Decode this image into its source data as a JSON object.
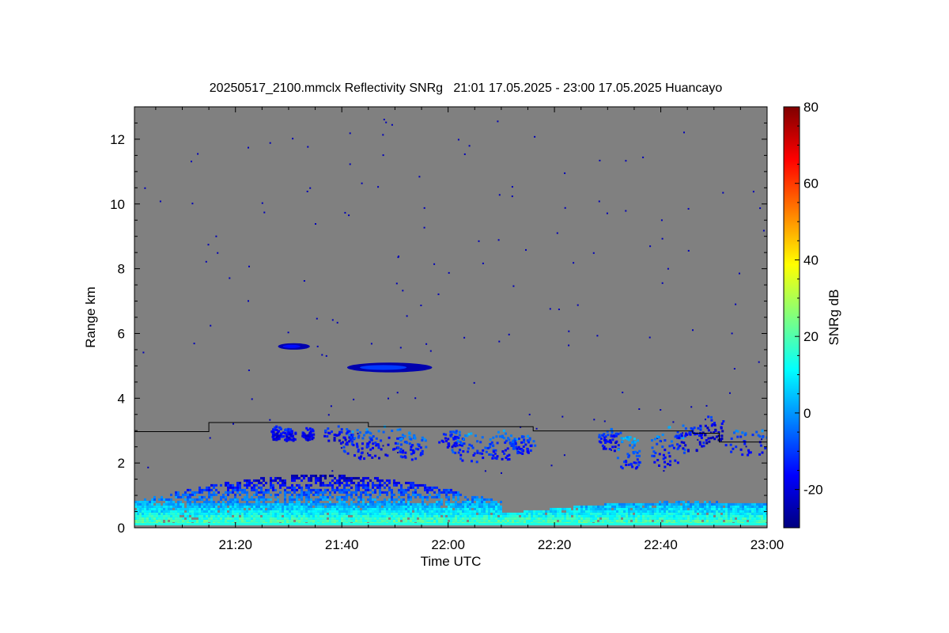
{
  "chart_data": {
    "type": "heatmap",
    "title": "20250517_2100.mmclx Reflectivity SNRg   21:01 17.05.2025 - 23:00 17.05.2025 Huancayo",
    "xlabel": "Time UTC",
    "ylabel": "Range km",
    "colorbar_label": "SNRg dB",
    "x_start_minutes_utc": 1261,
    "x_end_minutes_utc": 1380,
    "x_ticks": [
      {
        "label": "21:20",
        "minutes": 1280
      },
      {
        "label": "21:40",
        "minutes": 1300
      },
      {
        "label": "22:00",
        "minutes": 1320
      },
      {
        "label": "22:20",
        "minutes": 1340
      },
      {
        "label": "22:40",
        "minutes": 1360
      },
      {
        "label": "23:00",
        "minutes": 1380
      }
    ],
    "ylim": [
      0,
      13
    ],
    "y_ticks": [
      0,
      2,
      4,
      6,
      8,
      10,
      12
    ],
    "colorbar_range": [
      -30,
      80
    ],
    "colorbar_ticks": [
      -20,
      0,
      20,
      40,
      60,
      80
    ],
    "background_color": "#808080",
    "colormap": [
      "#00007f",
      "#0000ff",
      "#007fff",
      "#00ffff",
      "#7fff7f",
      "#ffff00",
      "#ff7f00",
      "#ff0000",
      "#7f0000"
    ],
    "reference_line": {
      "color": "#000000",
      "points": [
        [
          1261,
          2.97
        ],
        [
          1275,
          2.97
        ],
        [
          1275,
          3.25
        ],
        [
          1305,
          3.25
        ],
        [
          1305,
          3.12
        ],
        [
          1336,
          3.12
        ],
        [
          1336,
          2.99
        ],
        [
          1366,
          2.99
        ],
        [
          1366,
          2.92
        ],
        [
          1371,
          2.92
        ],
        [
          1371,
          2.65
        ],
        [
          1380,
          2.65
        ]
      ]
    },
    "echo_regions": [
      {
        "name": "boundary-layer",
        "x_range": [
          1261,
          1380
        ],
        "range_km": [
          0.1,
          1.6
        ],
        "snr_db_range": [
          -25,
          20
        ]
      },
      {
        "name": "elevated-layer-5km",
        "x_range": [
          1301,
          1317
        ],
        "range_km": [
          4.8,
          5.1
        ],
        "snr_db_range": [
          -25,
          -10
        ]
      },
      {
        "name": "elevated-layer-5.6km",
        "x_range": [
          1288,
          1294
        ],
        "range_km": [
          5.5,
          5.7
        ],
        "snr_db_range": [
          -25,
          -15
        ]
      },
      {
        "name": "cloud-layer-2.5-3.5km",
        "x_range": [
          1287,
          1380
        ],
        "range_km": [
          1.9,
          3.5
        ],
        "snr_db_range": [
          -25,
          5
        ]
      }
    ]
  }
}
